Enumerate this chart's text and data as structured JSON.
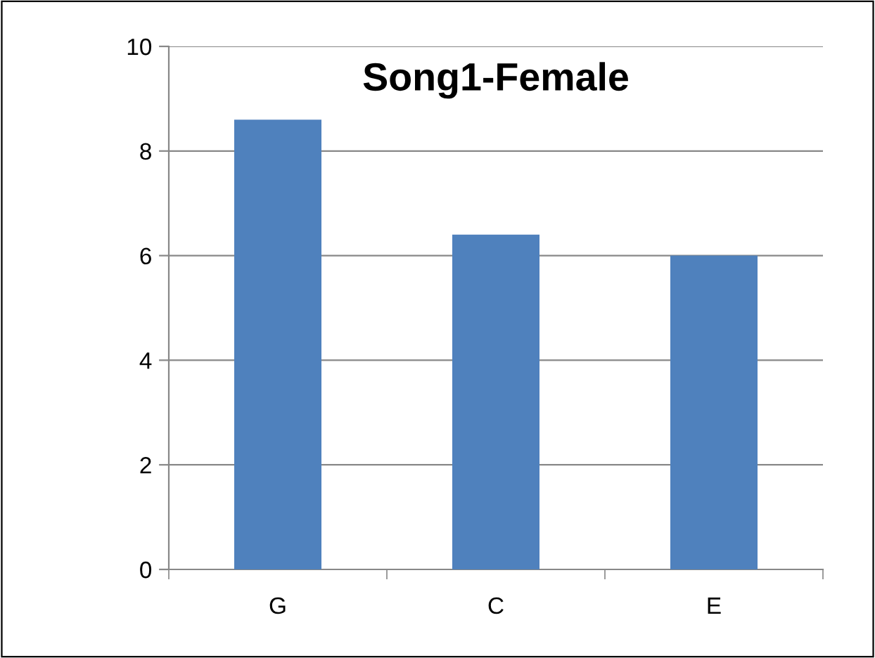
{
  "chart_data": {
    "type": "bar",
    "title": "Song1-Female",
    "categories": [
      "G",
      "C",
      "E"
    ],
    "values": [
      8.6,
      6.4,
      6.0
    ],
    "color": "#4f81bd",
    "ylim": [
      0,
      10
    ],
    "yticks": [
      0,
      2,
      4,
      6,
      8,
      10
    ],
    "grid": "y"
  }
}
